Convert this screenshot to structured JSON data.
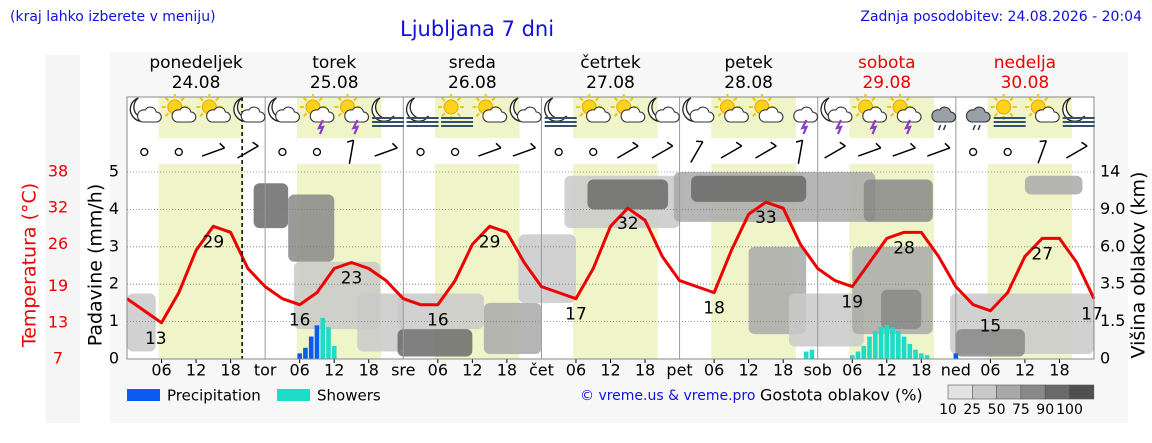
{
  "chart_data": {
    "type": "weather",
    "title": "Ljubljana 7 dni",
    "note_left": "(kraj lahko izberete v meniju)",
    "updated": "Zadnja posodobitev: 24.08.2026 - 20:04",
    "credit": "© vreme.us & vreme.pro",
    "xlim": [
      0,
      168
    ],
    "xticks": [
      {
        "value": 6,
        "label": "06"
      },
      {
        "value": 12,
        "label": "12"
      },
      {
        "value": 18,
        "label": "18"
      },
      {
        "value": 24,
        "label": "tor"
      },
      {
        "value": 30,
        "label": "06"
      },
      {
        "value": 36,
        "label": "12"
      },
      {
        "value": 42,
        "label": "18"
      },
      {
        "value": 48,
        "label": "sre"
      },
      {
        "value": 54,
        "label": "06"
      },
      {
        "value": 60,
        "label": "12"
      },
      {
        "value": 66,
        "label": "18"
      },
      {
        "value": 72,
        "label": "čet"
      },
      {
        "value": 78,
        "label": "06"
      },
      {
        "value": 84,
        "label": "12"
      },
      {
        "value": 90,
        "label": "18"
      },
      {
        "value": 96,
        "label": "pet"
      },
      {
        "value": 102,
        "label": "06"
      },
      {
        "value": 108,
        "label": "12"
      },
      {
        "value": 114,
        "label": "18"
      },
      {
        "value": 120,
        "label": "sob"
      },
      {
        "value": 126,
        "label": "06"
      },
      {
        "value": 132,
        "label": "12"
      },
      {
        "value": 138,
        "label": "18"
      },
      {
        "value": 144,
        "label": "ned"
      },
      {
        "value": 150,
        "label": "06"
      },
      {
        "value": 156,
        "label": "12"
      },
      {
        "value": 162,
        "label": "18"
      }
    ],
    "day_headers": [
      {
        "name": "ponedeljek",
        "date": "24.08",
        "color": "#000000"
      },
      {
        "name": "torek",
        "date": "25.08",
        "color": "#000000"
      },
      {
        "name": "sreda",
        "date": "26.08",
        "color": "#000000"
      },
      {
        "name": "četrtek",
        "date": "27.08",
        "color": "#000000"
      },
      {
        "name": "petek",
        "date": "28.08",
        "color": "#000000"
      },
      {
        "name": "sobota",
        "date": "29.08",
        "color": "#ee0000"
      },
      {
        "name": "nedelja",
        "date": "30.08",
        "color": "#ee0000"
      }
    ],
    "daylight": [
      5.5,
      20.2
    ],
    "now": 20,
    "ylabel": "Padavine (mm/h)",
    "ylim": [
      0,
      5
    ],
    "yticks": [
      0,
      1,
      2,
      3,
      4,
      5
    ],
    "y2label": "Višina oblakov (km)",
    "y2lim": [
      0,
      14
    ],
    "y2ticks": [
      0,
      1.5,
      3.5,
      {
        "value": 6,
        "label": "6.0"
      },
      {
        "value": 9,
        "label": "9.0"
      },
      14
    ],
    "temperature": {
      "label": "Temperatura (°C)",
      "color": "#ee0000",
      "ylim": [
        7,
        38
      ],
      "yticks": [
        7,
        13,
        19,
        26,
        32,
        38
      ],
      "x": [
        0,
        3,
        6,
        9,
        12,
        15,
        18,
        21,
        24,
        27,
        30,
        33,
        36,
        39,
        42,
        45,
        48,
        51,
        54,
        57,
        60,
        63,
        66,
        69,
        72,
        75,
        78,
        81,
        84,
        87,
        90,
        93,
        96,
        99,
        102,
        105,
        108,
        111,
        114,
        117,
        120,
        123,
        126,
        129,
        132,
        135,
        138,
        141,
        144,
        147,
        150,
        153,
        156,
        159,
        162,
        165,
        168
      ],
      "values": [
        17,
        15,
        13,
        18,
        25,
        29,
        28,
        22,
        19,
        17,
        16,
        18,
        22,
        23,
        22,
        20,
        17,
        16,
        16,
        20,
        26,
        29,
        28,
        23,
        19,
        18,
        17,
        22,
        29,
        32,
        30,
        24,
        20,
        19,
        18,
        25,
        31,
        33,
        32,
        26,
        22,
        20,
        19,
        23,
        27,
        28,
        28,
        24,
        19,
        16,
        15,
        18,
        24,
        27,
        27,
        23,
        17
      ],
      "extremes": {
        "x": [
          5,
          15,
          30,
          39,
          54,
          63,
          78,
          87,
          102,
          111,
          126,
          135,
          150,
          159,
          168
        ],
        "values": [
          13,
          29,
          16,
          23,
          16,
          29,
          17,
          32,
          18,
          33,
          19,
          28,
          15,
          27,
          17
        ]
      }
    },
    "bars": {
      "x": [
        30,
        31,
        32,
        33,
        34,
        35,
        36,
        118,
        119,
        126,
        127,
        128,
        129,
        130,
        131,
        132,
        133,
        134,
        135,
        136,
        137,
        138,
        139,
        144
      ],
      "series": [
        {
          "name": "Precipitation",
          "color": "#0a5cf0",
          "values": [
            0.15,
            0.3,
            0.6,
            0.9,
            null,
            null,
            null,
            null,
            null,
            null,
            null,
            null,
            null,
            null,
            null,
            null,
            null,
            null,
            null,
            null,
            null,
            null,
            null,
            0.15
          ]
        },
        {
          "name": "Showers",
          "color": "#1ddcc8",
          "values": [
            null,
            null,
            null,
            null,
            1.1,
            0.85,
            0.35,
            0.2,
            0.25,
            0.1,
            0.2,
            0.35,
            0.6,
            0.75,
            0.85,
            0.9,
            0.85,
            0.75,
            0.6,
            0.4,
            0.25,
            0.15,
            0.1,
            null
          ]
        }
      ]
    },
    "clouds": {
      "label": "Gostota oblakov (%)",
      "ticks": [
        10,
        25,
        50,
        75,
        90,
        100
      ],
      "colors": [
        "#e2e2e2",
        "#c9c9c9",
        "#a9a9a9",
        "#888888",
        "#6a6a6a",
        "#505050"
      ],
      "cells": [
        [
          0,
          5,
          0.3,
          3,
          25
        ],
        [
          22,
          28,
          7.5,
          12.5,
          90
        ],
        [
          28,
          36,
          5,
          11,
          75
        ],
        [
          29,
          44,
          1.2,
          5,
          25
        ],
        [
          40,
          48,
          0.3,
          3,
          25
        ],
        [
          47,
          62,
          1.2,
          3,
          25
        ],
        [
          47,
          60,
          0.1,
          1.2,
          90
        ],
        [
          62,
          72,
          0.2,
          2.5,
          50
        ],
        [
          68,
          78,
          2.5,
          7,
          25
        ],
        [
          76,
          96,
          7.5,
          13.5,
          25
        ],
        [
          80,
          94,
          9,
          13,
          90
        ],
        [
          95,
          130,
          8,
          14,
          50
        ],
        [
          98,
          118,
          10,
          13.5,
          90
        ],
        [
          108,
          118,
          1,
          6,
          50
        ],
        [
          115,
          128,
          0.5,
          3,
          25
        ],
        [
          128,
          140,
          8,
          13,
          75
        ],
        [
          126,
          140,
          1,
          6,
          50
        ],
        [
          131,
          138,
          1.2,
          3.2,
          75
        ],
        [
          143,
          168,
          0.2,
          3,
          25
        ],
        [
          144,
          156,
          0.1,
          1.2,
          75
        ],
        [
          156,
          166,
          11,
          13.5,
          50
        ]
      ]
    },
    "icons": {
      "x": [
        3,
        9,
        15,
        21,
        27,
        33,
        39,
        45,
        51,
        57,
        63,
        69,
        75,
        81,
        87,
        93,
        99,
        105,
        111,
        117,
        123,
        129,
        135,
        141,
        147,
        153,
        159,
        165
      ],
      "kinds": [
        "moon-cloud",
        "sun-cloud",
        "sun-cloud",
        "moon-cloud",
        "moon-cloud",
        "sun-storm",
        "sun-storm",
        "moon-fog",
        "moon-fog",
        "sun-fog",
        "sun-cloud",
        "moon-cloud",
        "moon-fog",
        "sun-cloud",
        "sun-cloud",
        "moon-cloud",
        "moon-cloud",
        "sun-cloud",
        "sun-cloud",
        "storm",
        "moon-storm",
        "sun-storm",
        "sun-storm",
        "rain",
        "cloud-rain",
        "sun-fog",
        "sun-cloud",
        "moon-fog"
      ]
    },
    "wind": {
      "x": [
        3,
        9,
        15,
        21,
        27,
        33,
        39,
        45,
        51,
        57,
        63,
        69,
        75,
        81,
        87,
        93,
        99,
        105,
        111,
        117,
        123,
        129,
        135,
        141,
        147,
        153,
        159,
        165
      ],
      "dir": [
        null,
        null,
        20,
        30,
        null,
        null,
        80,
        20,
        null,
        null,
        20,
        20,
        null,
        null,
        30,
        30,
        60,
        30,
        30,
        80,
        30,
        20,
        20,
        20,
        null,
        null,
        70,
        30
      ]
    }
  }
}
